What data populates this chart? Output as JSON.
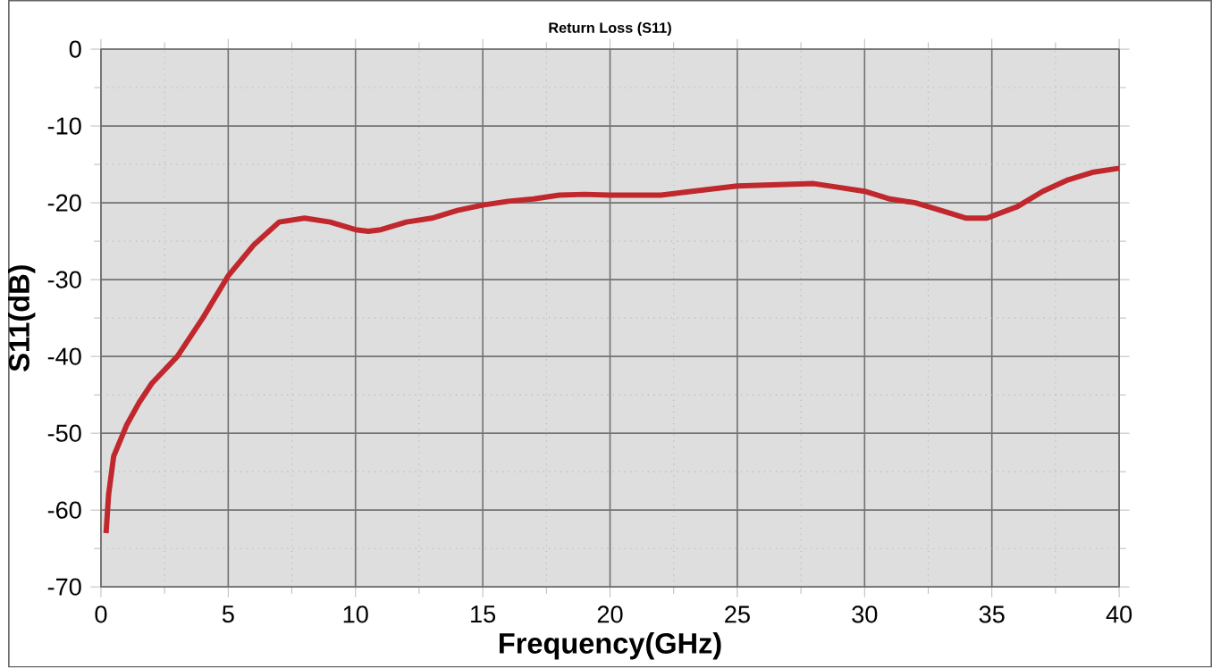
{
  "chart_data": {
    "type": "line",
    "title": "Return Loss (S11)",
    "xlabel": "Frequency(GHz)",
    "ylabel": "S11(dB)",
    "xlim": [
      0,
      40
    ],
    "ylim": [
      -70,
      0
    ],
    "xticks": [
      0,
      5,
      10,
      15,
      20,
      25,
      30,
      35,
      40
    ],
    "yticks": [
      -70,
      -60,
      -50,
      -40,
      -30,
      -20,
      -10,
      0
    ],
    "grid": true,
    "marker": "none",
    "line_style": "solid",
    "series": [
      {
        "color": "#c0282d",
        "x": [
          0.2,
          0.3,
          0.5,
          1,
          1.5,
          2,
          3,
          4,
          5,
          6,
          7,
          8,
          9,
          10,
          10.5,
          11,
          12,
          13,
          14,
          15,
          16,
          17,
          18,
          19,
          20,
          22,
          23,
          25,
          26,
          28,
          29,
          30,
          31,
          32,
          33,
          34,
          34.8,
          36,
          37,
          38,
          39,
          40
        ],
        "values": [
          -63,
          -58,
          -53,
          -49,
          -46,
          -43.5,
          -40,
          -35,
          -29.5,
          -25.5,
          -22.5,
          -22,
          -22.5,
          -23.5,
          -23.7,
          -23.5,
          -22.5,
          -22,
          -21,
          -20.3,
          -19.8,
          -19.5,
          -19,
          -18.9,
          -19,
          -19,
          -18.6,
          -17.8,
          -17.7,
          -17.5,
          -18,
          -18.5,
          -19.5,
          -20,
          -21,
          -22,
          -22,
          -20.5,
          -18.5,
          -17,
          -16,
          -15.5
        ]
      }
    ]
  }
}
